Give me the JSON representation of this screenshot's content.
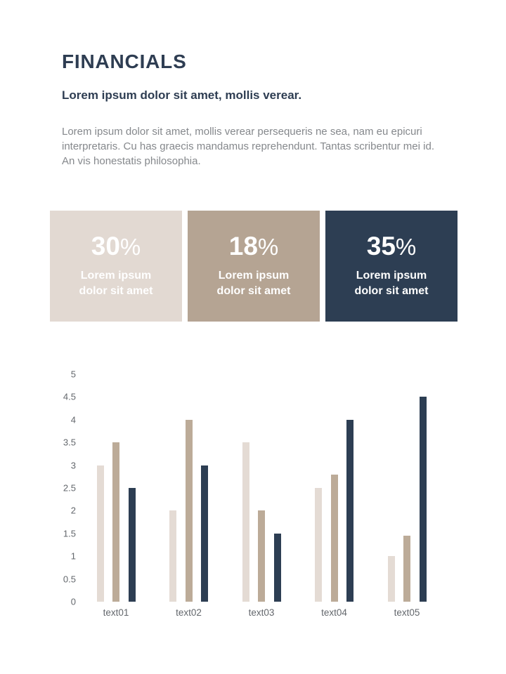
{
  "slide": {
    "title": "FINANCIALS",
    "subtitle": "Lorem ipsum dolor sit amet, mollis verear.",
    "body": "Lorem ipsum dolor sit amet, mollis verear persequeris ne sea, nam eu epicuri interpretaris. Cu has graecis mandamus reprehendunt. Tantas scribentur mei id. An vis honestatis philosophia."
  },
  "colors": {
    "background": "#ffffff",
    "heading_text": "#2e3d52",
    "body_text": "#85888c",
    "axis_text": "#63676c",
    "beige_light": "#e2d9d2",
    "tan": "#b5a493",
    "navy": "#2d3e53",
    "card_text": "#ffffff"
  },
  "stat_cards": [
    {
      "value": "30",
      "unit": "%",
      "label_line1": "Lorem ipsum",
      "label_line2": "dolor sit amet",
      "bg": "#e2d9d2",
      "text_color": "#ffffff"
    },
    {
      "value": "18",
      "unit": "%",
      "label_line1": "Lorem ipsum",
      "label_line2": "dolor sit amet",
      "bg": "#b5a493",
      "text_color": "#ffffff"
    },
    {
      "value": "35",
      "unit": "%",
      "label_line1": "Lorem ipsum",
      "label_line2": "dolor sit amet",
      "bg": "#2d3e53",
      "text_color": "#ffffff"
    }
  ],
  "chart_data": {
    "type": "bar",
    "title": "",
    "xlabel": "",
    "ylabel": "",
    "categories": [
      "text01",
      "text02",
      "text03",
      "text04",
      "text05"
    ],
    "series": [
      {
        "name": "series-1-light-beige",
        "color": "#e4dbd4",
        "values": [
          3,
          2,
          3.5,
          2.5,
          1
        ]
      },
      {
        "name": "series-2-tan",
        "color": "#bcab98",
        "values": [
          3.5,
          4,
          2,
          2.8,
          1.45
        ]
      },
      {
        "name": "series-3-navy",
        "color": "#2d3e53",
        "values": [
          2.5,
          3,
          1.5,
          4,
          4.5
        ]
      }
    ],
    "ylim": [
      0,
      5
    ],
    "yticks": [
      0,
      0.5,
      1,
      1.5,
      2,
      2.5,
      3,
      3.5,
      4,
      4.5,
      5
    ],
    "grid": false,
    "legend": false
  }
}
